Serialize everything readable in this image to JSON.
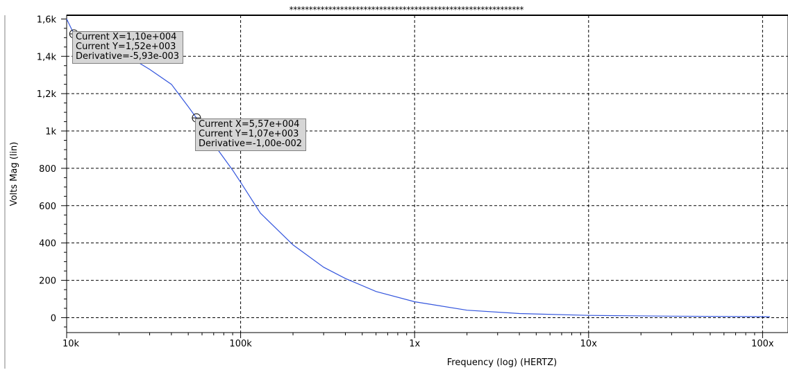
{
  "chart_data": {
    "type": "line",
    "title_marker": "************************************************************",
    "xlabel": "Frequency (log) (HERTZ)",
    "ylabel": "Volts Mag (lin)",
    "x_scale": "log",
    "xlim": [
      10000,
      140000000
    ],
    "ylim": [
      -80,
      1620
    ],
    "grid": true,
    "x_tick_labels": [
      {
        "value": 10000,
        "label": "10k"
      },
      {
        "value": 100000,
        "label": "100k"
      },
      {
        "value": 1000000,
        "label": "1x"
      },
      {
        "value": 10000000,
        "label": "10x"
      },
      {
        "value": 100000000,
        "label": "100x"
      }
    ],
    "y_tick_labels": [
      {
        "value": 1600,
        "label": "1,6k"
      },
      {
        "value": 1400,
        "label": "1,4k"
      },
      {
        "value": 1200,
        "label": "1,2k"
      },
      {
        "value": 1000,
        "label": "1k"
      },
      {
        "value": 800,
        "label": "800"
      },
      {
        "value": 600,
        "label": "600"
      },
      {
        "value": 400,
        "label": "400"
      },
      {
        "value": 200,
        "label": "200"
      },
      {
        "value": 0,
        "label": "0"
      }
    ],
    "series": [
      {
        "color": "#3355dd",
        "x": [
          10000,
          11000,
          14000,
          20000,
          30000,
          40000,
          50000,
          55700,
          70000,
          90000,
          100000,
          130000,
          200000,
          300000,
          400000,
          600000,
          1000000,
          2000000,
          4000000,
          10000000,
          30000000,
          110000000
        ],
        "y": [
          1600,
          1520,
          1500,
          1430,
          1330,
          1250,
          1130,
          1070,
          930,
          790,
          725,
          560,
          390,
          270,
          210,
          140,
          85,
          40,
          22,
          12,
          8,
          5
        ]
      }
    ],
    "cursors": [
      {
        "x": 11000,
        "y": 1520,
        "lines": [
          "Current X=1,10e+004",
          "Current Y=1,52e+003",
          "Derivative=-5,93e-003"
        ]
      },
      {
        "x": 55700,
        "y": 1070,
        "lines": [
          "Current X=5,57e+004",
          "Current Y=1,07e+003",
          "Derivative=-1,00e-002"
        ]
      }
    ]
  }
}
